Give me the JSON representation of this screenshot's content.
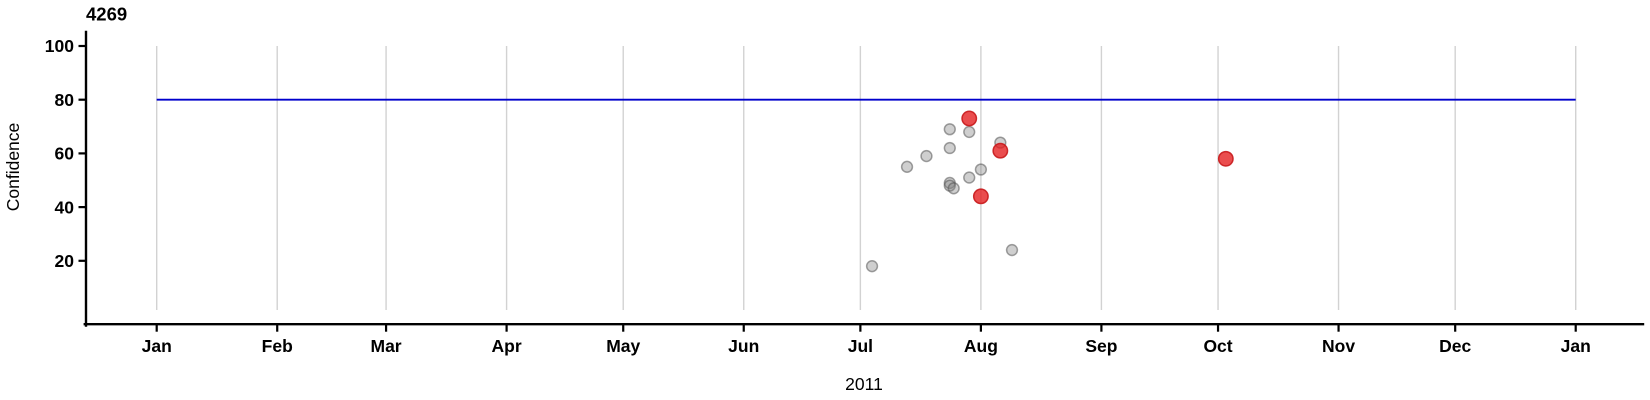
{
  "chart_data": {
    "type": "scatter",
    "title": "4269",
    "xlabel": "2011",
    "ylabel": "Confidence",
    "x_axis": {
      "year": "2011",
      "tick_labels": [
        "Jan",
        "Feb",
        "Mar",
        "Apr",
        "May",
        "Jun",
        "Jul",
        "Aug",
        "Sep",
        "Oct",
        "Nov",
        "Dec",
        "Jan"
      ],
      "tick_days": [
        0,
        31,
        59,
        90,
        120,
        151,
        181,
        212,
        243,
        273,
        304,
        334,
        365
      ],
      "range_days": [
        0,
        365
      ],
      "grid": true
    },
    "y_axis": {
      "ticks": [
        100,
        80,
        60,
        40,
        20
      ],
      "tick_labels": [
        "100",
        "80",
        "60",
        "40",
        "20"
      ],
      "range": [
        0,
        105
      ],
      "grid": false
    },
    "reference_line": {
      "y": 80,
      "color": "#0000cc"
    },
    "series": [
      {
        "name": "gray",
        "marker": {
          "fill": "#828282",
          "fill_opacity": 0.38,
          "stroke": "#555555",
          "stroke_opacity": 0.55,
          "radius": 5.4
        },
        "points": [
          {
            "date": "Jul 4",
            "day": 184,
            "confidence": 18
          },
          {
            "date": "Jul 13",
            "day": 193,
            "confidence": 55
          },
          {
            "date": "Jul 18",
            "day": 198,
            "confidence": 59
          },
          {
            "date": "Jul 24",
            "day": 204,
            "confidence": 69
          },
          {
            "date": "Jul 24",
            "day": 204,
            "confidence": 62
          },
          {
            "date": "Jul 24",
            "day": 204,
            "confidence": 49
          },
          {
            "date": "Jul 24",
            "day": 204,
            "confidence": 48
          },
          {
            "date": "Jul 25",
            "day": 205,
            "confidence": 47
          },
          {
            "date": "Jul 29",
            "day": 209,
            "confidence": 68
          },
          {
            "date": "Jul 29",
            "day": 209,
            "confidence": 51
          },
          {
            "date": "Aug 1",
            "day": 212,
            "confidence": 54
          },
          {
            "date": "Aug 6",
            "day": 217,
            "confidence": 64
          },
          {
            "date": "Aug 9",
            "day": 220,
            "confidence": 24
          }
        ]
      },
      {
        "name": "red",
        "marker": {
          "fill": "#e41b1c",
          "fill_opacity": 0.78,
          "stroke": "#c81a1c",
          "stroke_opacity": 0.9,
          "radius": 7.2
        },
        "points": [
          {
            "date": "Jul 29",
            "day": 209,
            "confidence": 73
          },
          {
            "date": "Aug 6",
            "day": 217,
            "confidence": 61
          },
          {
            "date": "Aug 1",
            "day": 212,
            "confidence": 44
          },
          {
            "date": "Oct 3",
            "day": 275,
            "confidence": 58
          }
        ]
      }
    ]
  }
}
